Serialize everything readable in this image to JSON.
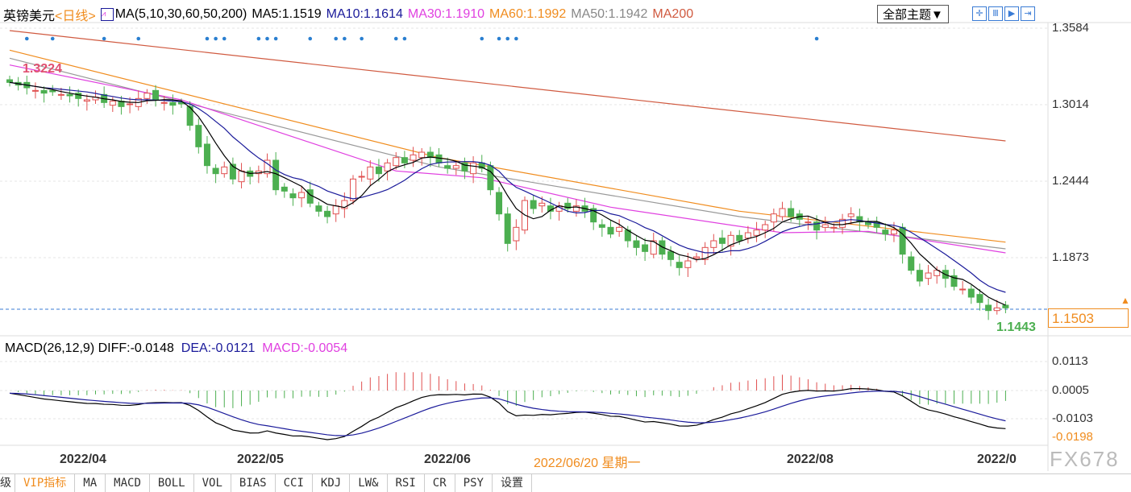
{
  "header": {
    "symbol": "英镑美元",
    "period": "<日线>",
    "ma_label": "MA(5,10,30,60,50,200)",
    "ma5": "MA5:1.1519",
    "ma10": "MA10:1.1614",
    "ma30": "MA30:1.1910",
    "ma60": "MA60:1.1992",
    "ma50": "MA50:1.1942",
    "ma200": "MA200",
    "theme_button": "全部主题▼"
  },
  "colors": {
    "up": "#e05050",
    "down": "#4caf50",
    "ma5": "#000000",
    "ma10": "#1a1a9a",
    "ma30": "#e040e0",
    "ma60": "#f08c1e",
    "ma50": "#999999",
    "ma200": "#d05a40",
    "diff": "#000000",
    "dea": "#1a1a9a",
    "signal_dots": "#2a7fd0"
  },
  "price_axis": {
    "ticks": [
      "1.3584",
      "1.3014",
      "1.2444",
      "1.1873"
    ],
    "current": "1.1503",
    "high_label": "1.3224",
    "low_label": "1.1443"
  },
  "macd_header": {
    "label": "MACD(26,12,9)",
    "diff": "DIFF:-0.0148",
    "dea": "DEA:-0.0121",
    "macd": "MACD:-0.0054"
  },
  "macd_axis": {
    "ticks": [
      "0.0113",
      "0.0005",
      "-0.0103"
    ],
    "bottom": "-0.0198"
  },
  "date_axis": {
    "labels": [
      "2022/04",
      "2022/05",
      "2022/06",
      "2022/08",
      "2022/0"
    ],
    "cursor": "2022/06/20 星期一"
  },
  "watermark": "FX678",
  "tabs": [
    "级",
    "VIP指标",
    "MA",
    "MACD",
    "BOLL",
    "VOL",
    "BIAS",
    "CCI",
    "KDJ",
    "LW&",
    "RSI",
    "CR",
    "PSY",
    "设置"
  ],
  "chart_data": {
    "type": "candlestick",
    "ylim": [
      1.1443,
      1.3584
    ],
    "close": [
      1.318,
      1.316,
      1.314,
      1.312,
      1.31,
      1.311,
      1.309,
      1.308,
      1.306,
      1.305,
      1.307,
      1.303,
      1.304,
      1.3,
      1.302,
      1.306,
      1.31,
      1.305,
      1.303,
      1.301,
      1.302,
      1.286,
      1.27,
      1.256,
      1.25,
      1.255,
      1.246,
      1.252,
      1.248,
      1.252,
      1.26,
      1.238,
      1.237,
      1.232,
      1.236,
      1.228,
      1.222,
      1.218,
      1.226,
      1.23,
      1.246,
      1.248,
      1.255,
      1.25,
      1.258,
      1.262,
      1.258,
      1.264,
      1.266,
      1.262,
      1.258,
      1.254,
      1.256,
      1.252,
      1.258,
      1.254,
      1.238,
      1.22,
      1.198,
      1.21,
      1.23,
      1.224,
      1.228,
      1.222,
      1.226,
      1.224,
      1.226,
      1.222,
      1.214,
      1.21,
      1.205,
      1.21,
      1.2,
      1.195,
      1.192,
      1.2,
      1.19,
      1.186,
      1.18,
      1.185,
      1.188,
      1.195,
      1.2,
      1.198,
      1.204,
      1.2,
      1.206,
      1.208,
      1.212,
      1.22,
      1.224,
      1.218,
      1.216,
      1.214,
      1.208,
      1.212,
      1.21,
      1.216,
      1.22,
      1.214,
      1.212,
      1.21,
      1.205,
      1.208,
      1.19,
      1.178,
      1.17,
      1.176,
      1.178,
      1.172,
      1.166,
      1.164,
      1.158,
      1.154,
      1.148,
      1.15,
      1.15
    ],
    "ma200": [
      [
        0,
        1.3566
      ],
      [
        116,
        1.2744
      ]
    ],
    "ma60": [
      [
        0,
        1.342
      ],
      [
        50,
        1.262
      ],
      [
        85,
        1.222
      ],
      [
        116,
        1.199
      ]
    ],
    "ma50": [
      [
        0,
        1.336
      ],
      [
        50,
        1.255
      ],
      [
        85,
        1.218
      ],
      [
        116,
        1.194
      ]
    ],
    "ma30": [
      [
        0,
        1.331
      ],
      [
        20,
        1.305
      ],
      [
        45,
        1.252
      ],
      [
        55,
        1.247
      ],
      [
        70,
        1.225
      ],
      [
        90,
        1.206
      ],
      [
        100,
        1.207
      ],
      [
        116,
        1.191
      ]
    ],
    "signal_dots": [
      2,
      5,
      11,
      15,
      23,
      24,
      25,
      29,
      30,
      31,
      35,
      38,
      39,
      41,
      45,
      46,
      55,
      57,
      58,
      59,
      94
    ]
  }
}
